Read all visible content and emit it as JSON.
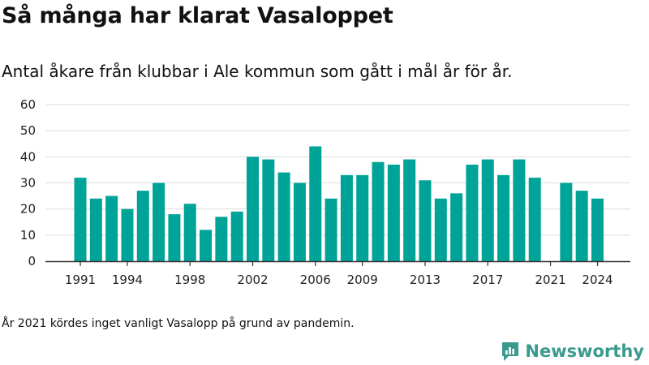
{
  "title": "Så många har klarat Vasaloppet",
  "subtitle": "Antal åkare från klubbar i Ale kommun som gått i mål år för år.",
  "note": "År 2021 kördes inget vanligt Vasalopp på grund av pandemin.",
  "brand": {
    "name": "Newsworthy",
    "icon": "newsworthy-logo-icon"
  },
  "colors": {
    "bar": "#00a398",
    "grid": "#dddddd",
    "axis": "#333333"
  },
  "chart_data": {
    "type": "bar",
    "title": "",
    "xlabel": "",
    "ylabel": "",
    "ylim": [
      0,
      60
    ],
    "yticks": [
      0,
      10,
      20,
      30,
      40,
      50,
      60
    ],
    "xtick_labels": [
      "1991",
      "1994",
      "1998",
      "2002",
      "2006",
      "2009",
      "2013",
      "2017",
      "2021",
      "2024"
    ],
    "grid": true,
    "categories": [
      1991,
      1992,
      1993,
      1994,
      1995,
      1996,
      1997,
      1998,
      1999,
      2000,
      2001,
      2002,
      2003,
      2004,
      2005,
      2006,
      2007,
      2008,
      2009,
      2010,
      2011,
      2012,
      2013,
      2014,
      2015,
      2016,
      2017,
      2018,
      2019,
      2020,
      2021,
      2022,
      2023,
      2024
    ],
    "values": [
      32,
      24,
      25,
      20,
      27,
      30,
      18,
      22,
      12,
      17,
      19,
      40,
      39,
      34,
      30,
      44,
      24,
      33,
      33,
      38,
      37,
      39,
      31,
      24,
      26,
      37,
      39,
      33,
      39,
      32,
      0,
      30,
      27,
      24
    ]
  }
}
